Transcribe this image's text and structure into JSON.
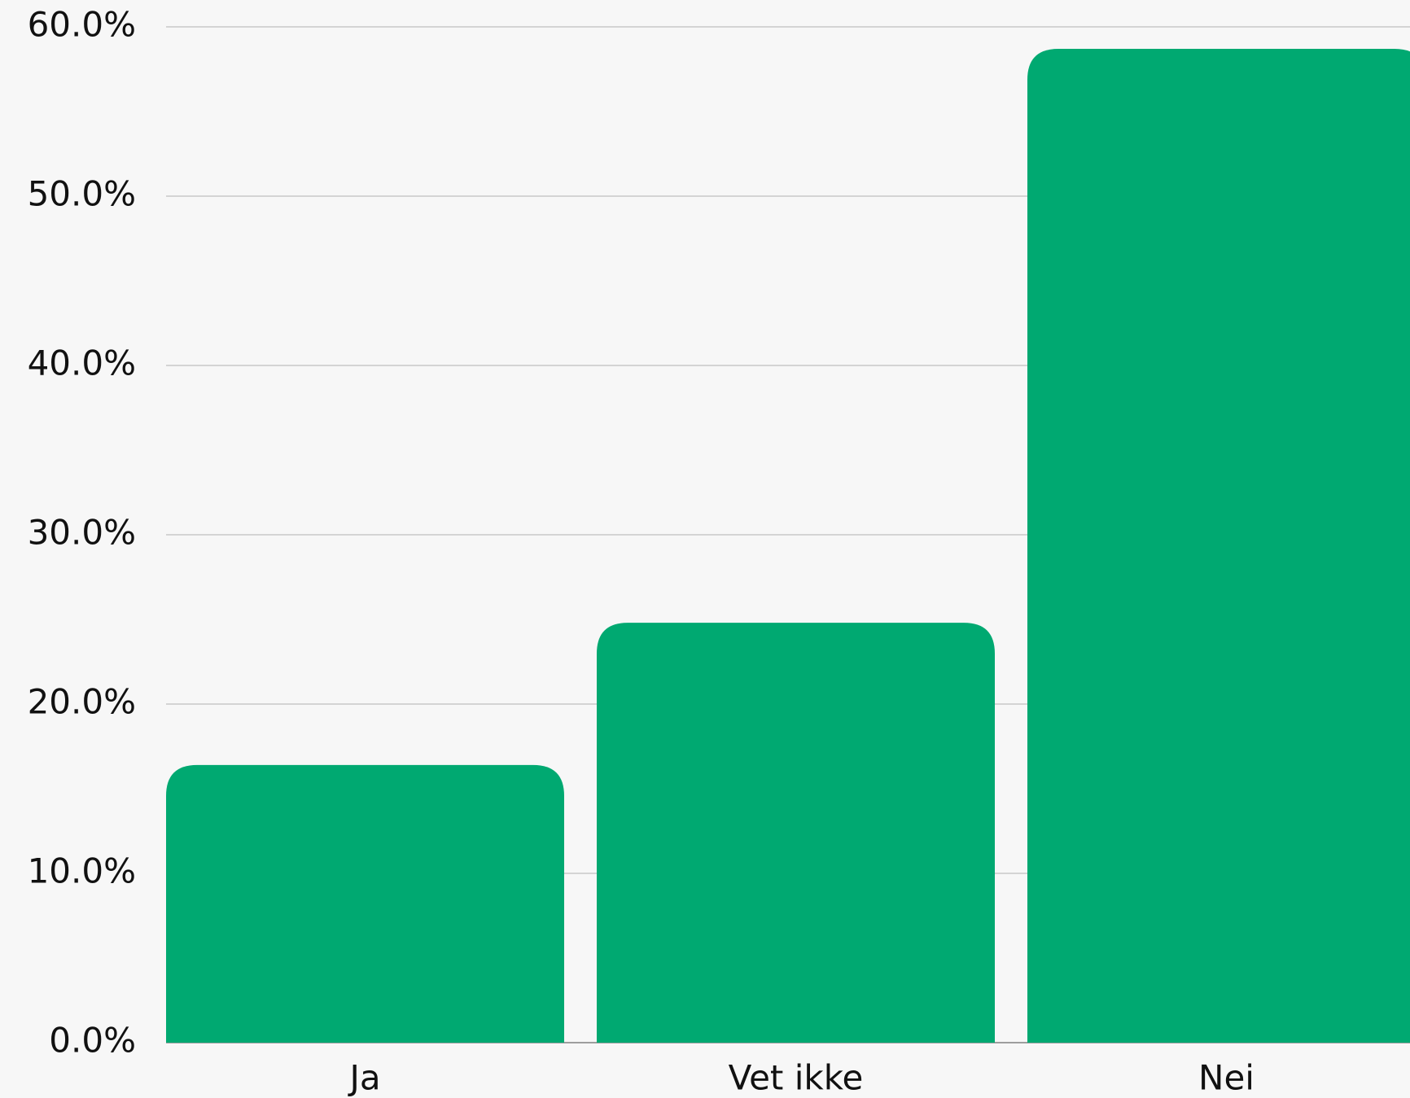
{
  "chart_data": {
    "type": "bar",
    "categories": [
      "Ja",
      "Vet ikke",
      "Nei"
    ],
    "values": [
      16.4,
      24.8,
      58.7
    ],
    "color": "#00a971",
    "ylim": [
      0,
      60
    ],
    "yticks": [
      {
        "value": 0,
        "label": "0.0%"
      },
      {
        "value": 10,
        "label": "10.0%"
      },
      {
        "value": 20,
        "label": "20.0%"
      },
      {
        "value": 30,
        "label": "30.0%"
      },
      {
        "value": 40,
        "label": "40.0%"
      },
      {
        "value": 50,
        "label": "50.0%"
      },
      {
        "value": 60,
        "label": "60.0%"
      }
    ],
    "grid": true
  }
}
